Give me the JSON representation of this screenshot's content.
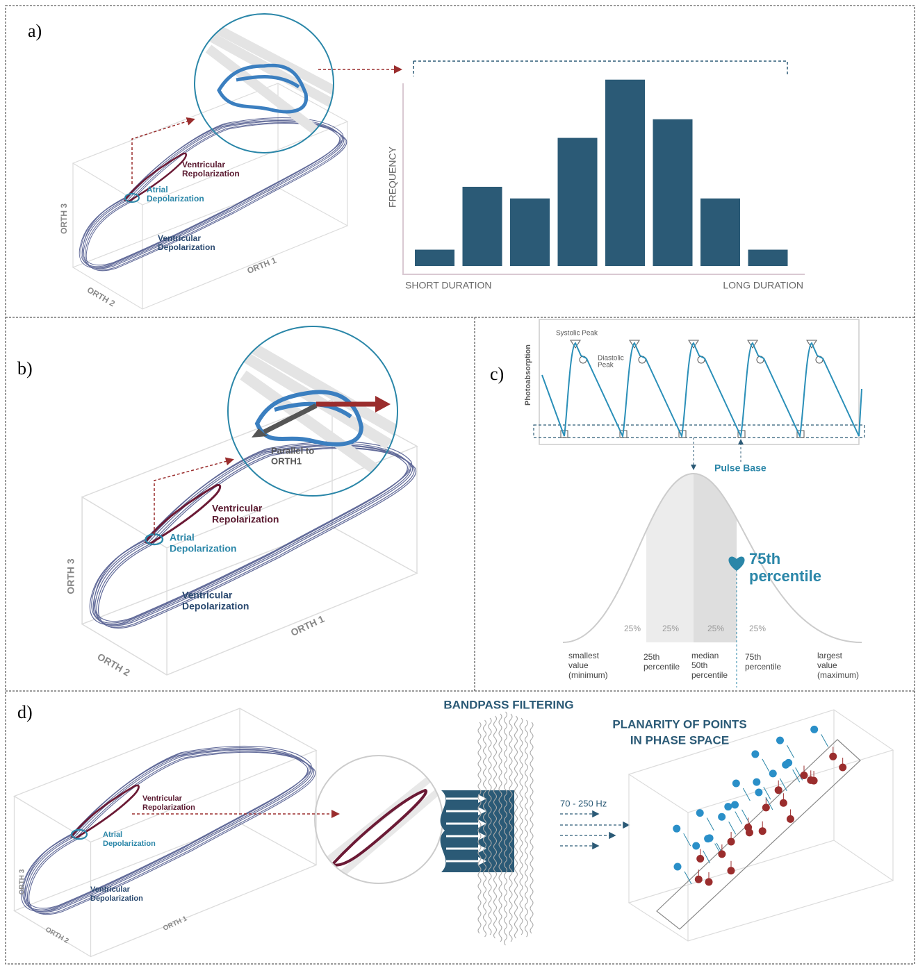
{
  "panel_a": {
    "label": "a)",
    "axis_labels": {
      "orth3": "ORTH 3",
      "orth2": "ORTH 2",
      "orth1": "ORTH 1"
    },
    "ventricular_repolarization": [
      "Ventricular",
      "Repolarization"
    ],
    "atrial_depolarization": [
      "Atrial",
      "Depolarization"
    ],
    "ventricular_depolarization": [
      "Ventricular",
      "Depolarization"
    ]
  },
  "chart_data": {
    "type": "bar",
    "y_label": "FREQUENCY",
    "x_start_label": "SHORT DURATION",
    "x_end_label": "LONG DURATION",
    "values": [
      0.35,
      1.7,
      1.45,
      2.75,
      4,
      3.15,
      1.45,
      0.35
    ],
    "color": "#2b5a76",
    "ylim": [
      0,
      4.1
    ]
  },
  "panel_b": {
    "label": "b)",
    "annotation": [
      "Parallel to",
      "ORTH1"
    ],
    "axis_labels": {
      "orth3": "ORTH 3",
      "orth2": "ORTH 2",
      "orth1": "ORTH 1"
    },
    "ventricular_repolarization": [
      "Ventricular",
      "Repolarization"
    ],
    "atrial_depolarization": [
      "Atrial",
      "Depolarization"
    ],
    "ventricular_depolarization": [
      "Ventricular",
      "Depolarization"
    ]
  },
  "panel_c": {
    "label": "c)",
    "y_label": "Photoabsorption",
    "systolic_peak": "Systolic Peak",
    "diastolic_peak": [
      "Diastolic",
      "Peak"
    ],
    "pulse_base": "Pulse Base",
    "highlight": [
      "75th",
      "percentile"
    ],
    "quartile_labels": [
      "25%",
      "25%",
      "25%",
      "25%"
    ],
    "scale_labels": [
      [
        "smallest",
        "value",
        "(minimum)"
      ],
      [
        "25th",
        "percentile"
      ],
      [
        "median",
        "50th",
        "percentile"
      ],
      [
        "75th",
        "percentile"
      ],
      [
        "largest",
        "value",
        "(maximum)"
      ]
    ]
  },
  "panel_d": {
    "label": "d)",
    "bandpass_title": "BANDPASS FILTERING",
    "planarity_title": [
      "PLANARITY OF POINTS",
      "IN PHASE SPACE"
    ],
    "frequency_band": "70 - 250 Hz",
    "axis_labels": {
      "orth3": "ORTH 3",
      "orth2": "ORTH 2",
      "orth1": "ORTH 1"
    },
    "ventricular_repolarization": [
      "Ventricular",
      "Repolarization"
    ],
    "atrial_depolarization": [
      "Atrial",
      "Depolarization"
    ],
    "ventricular_depolarization": [
      "Ventricular",
      "Depolarization"
    ]
  }
}
